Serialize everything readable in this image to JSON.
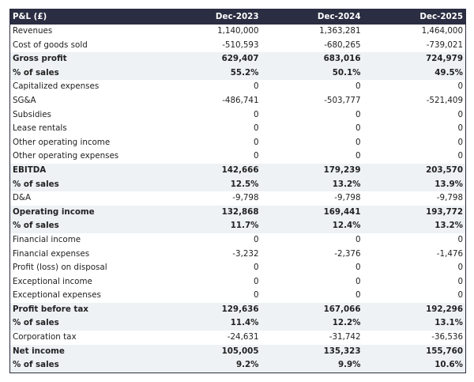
{
  "table": {
    "header": [
      "P&L (£)",
      "Dec-2023",
      "Dec-2024",
      "Dec-2025"
    ],
    "colors": {
      "header_bg": "#2b2d42",
      "bold_row_bg": "#eef2f5"
    },
    "rows": [
      {
        "label": "Revenues",
        "values": [
          "1,140,000",
          "1,363,281",
          "1,464,000"
        ],
        "bold": false
      },
      {
        "label": "Cost of goods sold",
        "values": [
          "-510,593",
          "-680,265",
          "-739,021"
        ],
        "bold": false
      },
      {
        "label": "Gross profit",
        "values": [
          "629,407",
          "683,016",
          "724,979"
        ],
        "bold": true
      },
      {
        "label": "% of sales",
        "values": [
          "55.2%",
          "50.1%",
          "49.5%"
        ],
        "bold": true
      },
      {
        "label": "Capitalized expenses",
        "values": [
          "0",
          "0",
          "0"
        ],
        "bold": false
      },
      {
        "label": "SG&A",
        "values": [
          "-486,741",
          "-503,777",
          "-521,409"
        ],
        "bold": false
      },
      {
        "label": "Subsidies",
        "values": [
          "0",
          "0",
          "0"
        ],
        "bold": false
      },
      {
        "label": "Lease rentals",
        "values": [
          "0",
          "0",
          "0"
        ],
        "bold": false
      },
      {
        "label": "Other operating income",
        "values": [
          "0",
          "0",
          "0"
        ],
        "bold": false
      },
      {
        "label": "Other operating expenses",
        "values": [
          "0",
          "0",
          "0"
        ],
        "bold": false
      },
      {
        "label": "EBITDA",
        "values": [
          "142,666",
          "179,239",
          "203,570"
        ],
        "bold": true
      },
      {
        "label": "% of sales",
        "values": [
          "12.5%",
          "13.2%",
          "13.9%"
        ],
        "bold": true
      },
      {
        "label": "D&A",
        "values": [
          "-9,798",
          "-9,798",
          "-9,798"
        ],
        "bold": false
      },
      {
        "label": "Operating income",
        "values": [
          "132,868",
          "169,441",
          "193,772"
        ],
        "bold": true
      },
      {
        "label": "% of sales",
        "values": [
          "11.7%",
          "12.4%",
          "13.2%"
        ],
        "bold": true
      },
      {
        "label": "Financial income",
        "values": [
          "0",
          "0",
          "0"
        ],
        "bold": false
      },
      {
        "label": "Financial expenses",
        "values": [
          "-3,232",
          "-2,376",
          "-1,476"
        ],
        "bold": false
      },
      {
        "label": "Profit (loss) on disposal",
        "values": [
          "0",
          "0",
          "0"
        ],
        "bold": false
      },
      {
        "label": "Exceptional income",
        "values": [
          "0",
          "0",
          "0"
        ],
        "bold": false
      },
      {
        "label": "Exceptional expenses",
        "values": [
          "0",
          "0",
          "0"
        ],
        "bold": false
      },
      {
        "label": "Profit before tax",
        "values": [
          "129,636",
          "167,066",
          "192,296"
        ],
        "bold": true
      },
      {
        "label": "% of sales",
        "values": [
          "11.4%",
          "12.2%",
          "13.1%"
        ],
        "bold": true
      },
      {
        "label": "Corporation tax",
        "values": [
          "-24,631",
          "-31,742",
          "-36,536"
        ],
        "bold": false
      },
      {
        "label": "Net income",
        "values": [
          "105,005",
          "135,323",
          "155,760"
        ],
        "bold": true
      },
      {
        "label": "% of sales",
        "values": [
          "9.2%",
          "9.9%",
          "10.6%"
        ],
        "bold": true
      }
    ]
  }
}
